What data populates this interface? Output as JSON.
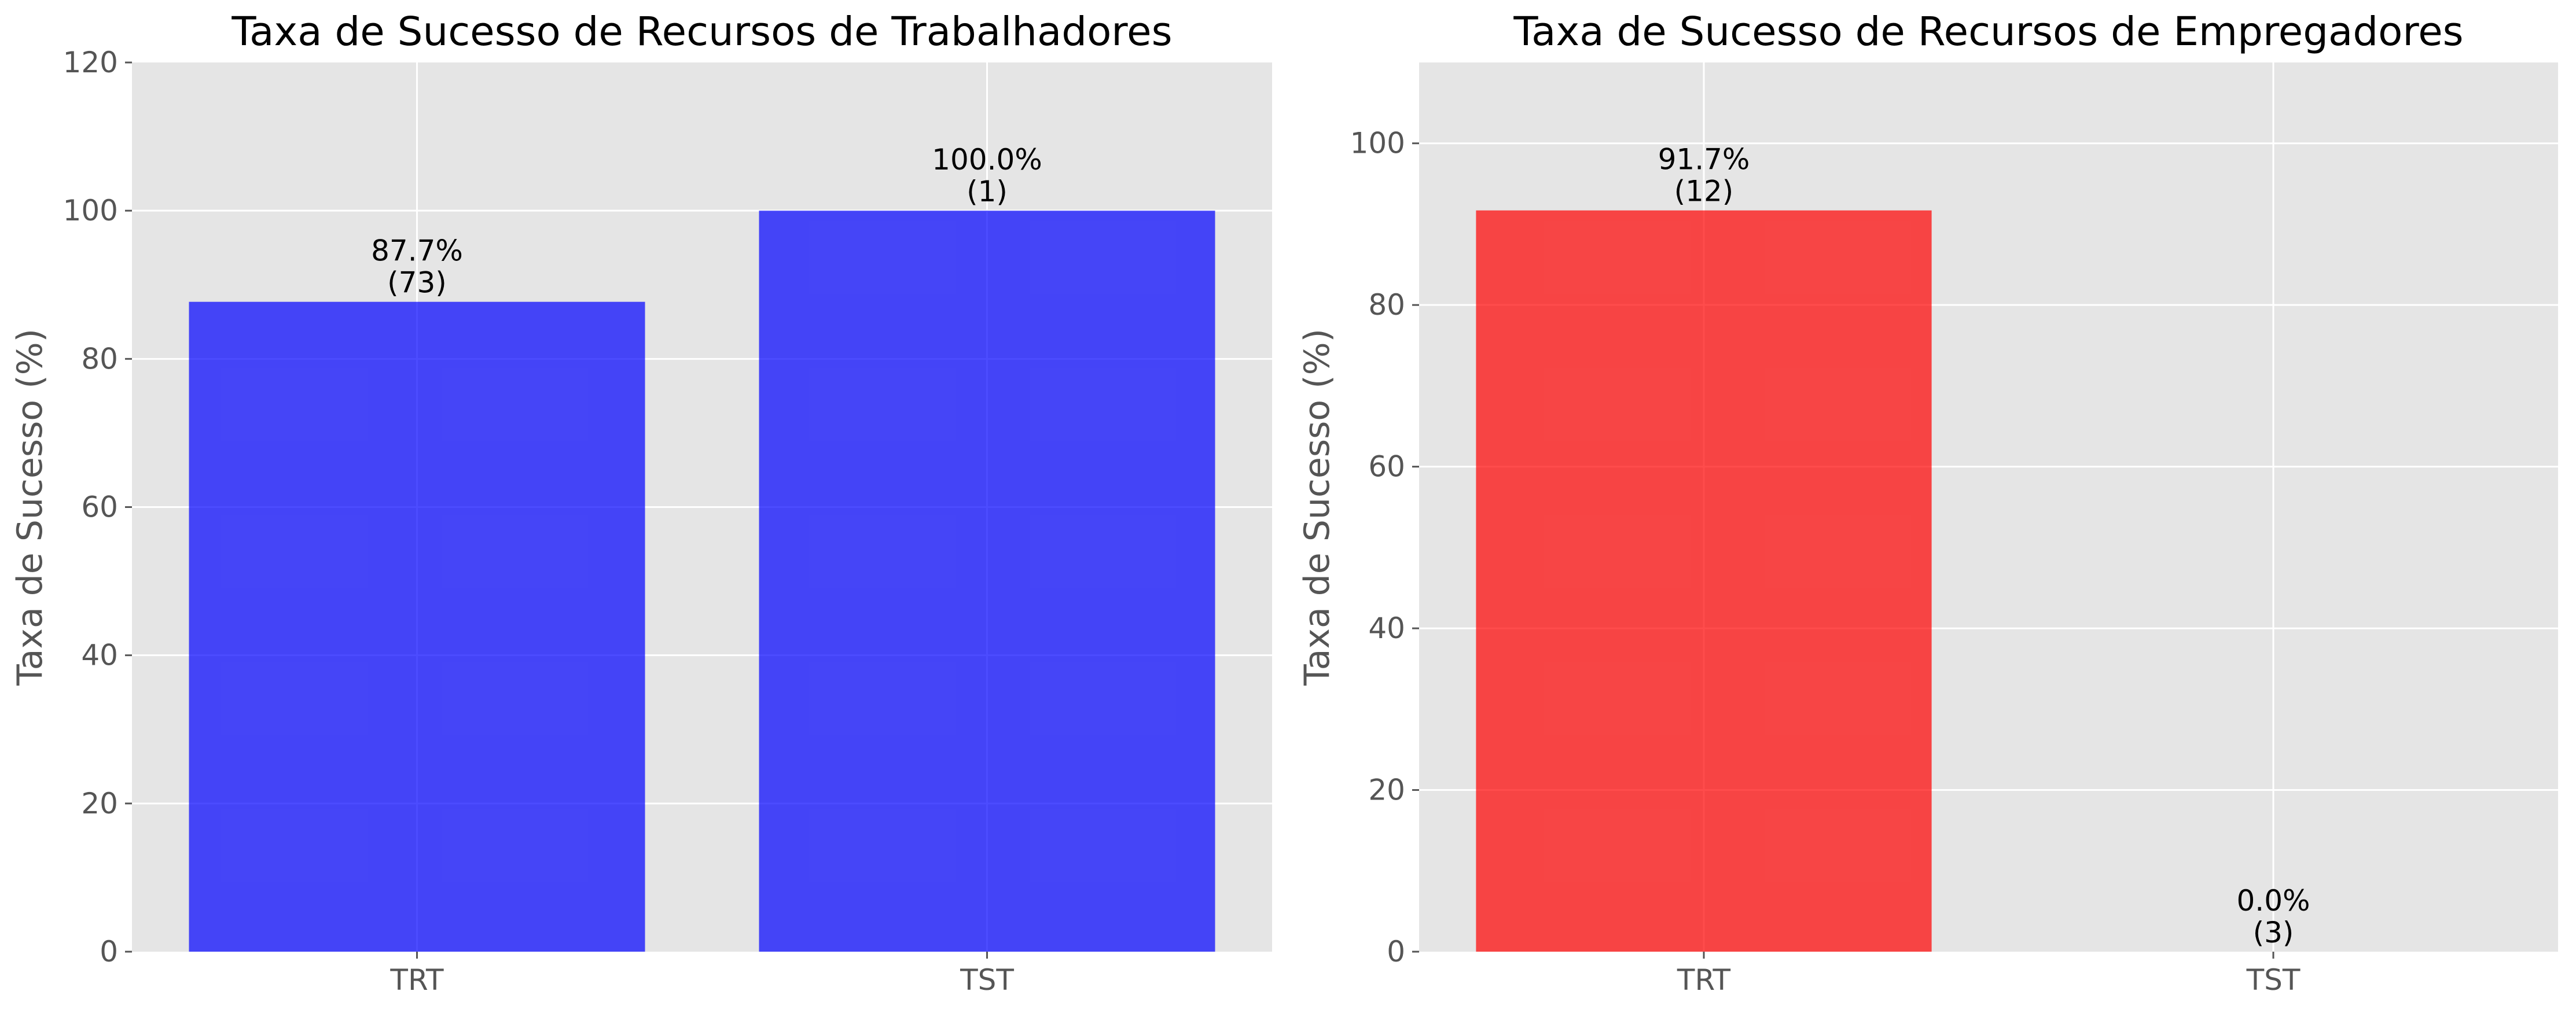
{
  "chart_data": [
    {
      "type": "bar",
      "title": "Taxa de Sucesso de Recursos de Trabalhadores",
      "xlabel": "",
      "ylabel": "Taxa de Sucesso (%)",
      "categories": [
        "TRT",
        "TST"
      ],
      "values": [
        87.7,
        100.0
      ],
      "bar_labels": [
        "87.7%",
        "100.0%"
      ],
      "count_labels": [
        "(73)",
        "(1)"
      ],
      "ylim": [
        0,
        120
      ],
      "yticks": [
        0,
        20,
        40,
        60,
        80,
        100,
        120
      ],
      "color": "#0000ff",
      "grid": true
    },
    {
      "type": "bar",
      "title": "Taxa de Sucesso de Recursos de Empregadores",
      "xlabel": "",
      "ylabel": "Taxa de Sucesso (%)",
      "categories": [
        "TRT",
        "TST"
      ],
      "values": [
        91.7,
        0.0
      ],
      "bar_labels": [
        "91.7%",
        "0.0%"
      ],
      "count_labels": [
        "(12)",
        "(3)"
      ],
      "ylim": [
        0,
        110
      ],
      "yticks": [
        0,
        20,
        40,
        60,
        80,
        100
      ],
      "color": "#ff0000",
      "grid": true
    }
  ]
}
